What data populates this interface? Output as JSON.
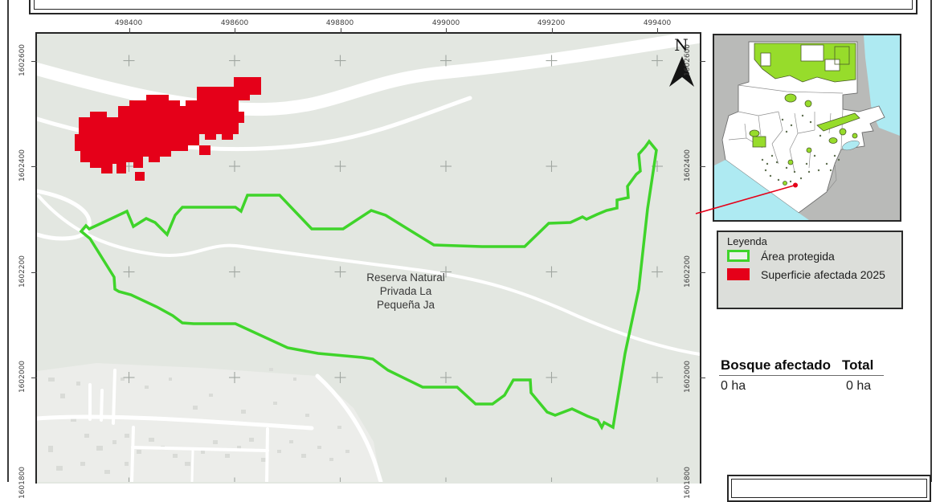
{
  "main_map": {
    "place_label": "Reserva Natural\nPrivada La\nPequeña Ja",
    "north_label": "N"
  },
  "axes": {
    "top": [
      "498400",
      "498600",
      "498800",
      "499000",
      "499200",
      "499400"
    ],
    "left": [
      "1602600",
      "1602400",
      "1602200",
      "1602000"
    ],
    "right": [
      "1602600",
      "1602400",
      "1602200",
      "1602000"
    ],
    "bottom_partial_left": "1601800",
    "bottom_partial_right": "1601800"
  },
  "legend": {
    "title": "Leyenda",
    "items": [
      {
        "label": "Área protegida",
        "swatch": "green-outline",
        "color": "#3fd42a"
      },
      {
        "label": "Superficie afectada 2025",
        "swatch": "red-fill",
        "color": "#e50019"
      }
    ]
  },
  "stats": {
    "header_left": "Bosque afectado",
    "header_right": "Total",
    "value_left": "0 ha",
    "value_right": "0 ha"
  },
  "colors": {
    "protected_outline_green": "#3fd42a",
    "affected_red": "#e50019",
    "map_base": "#e3e7e1",
    "town_area": "#ecedea",
    "water_cyan": "#aeeaf2",
    "inset_protected_green": "#97dc2b",
    "neighbor_country_gray": "#b9bab8"
  }
}
